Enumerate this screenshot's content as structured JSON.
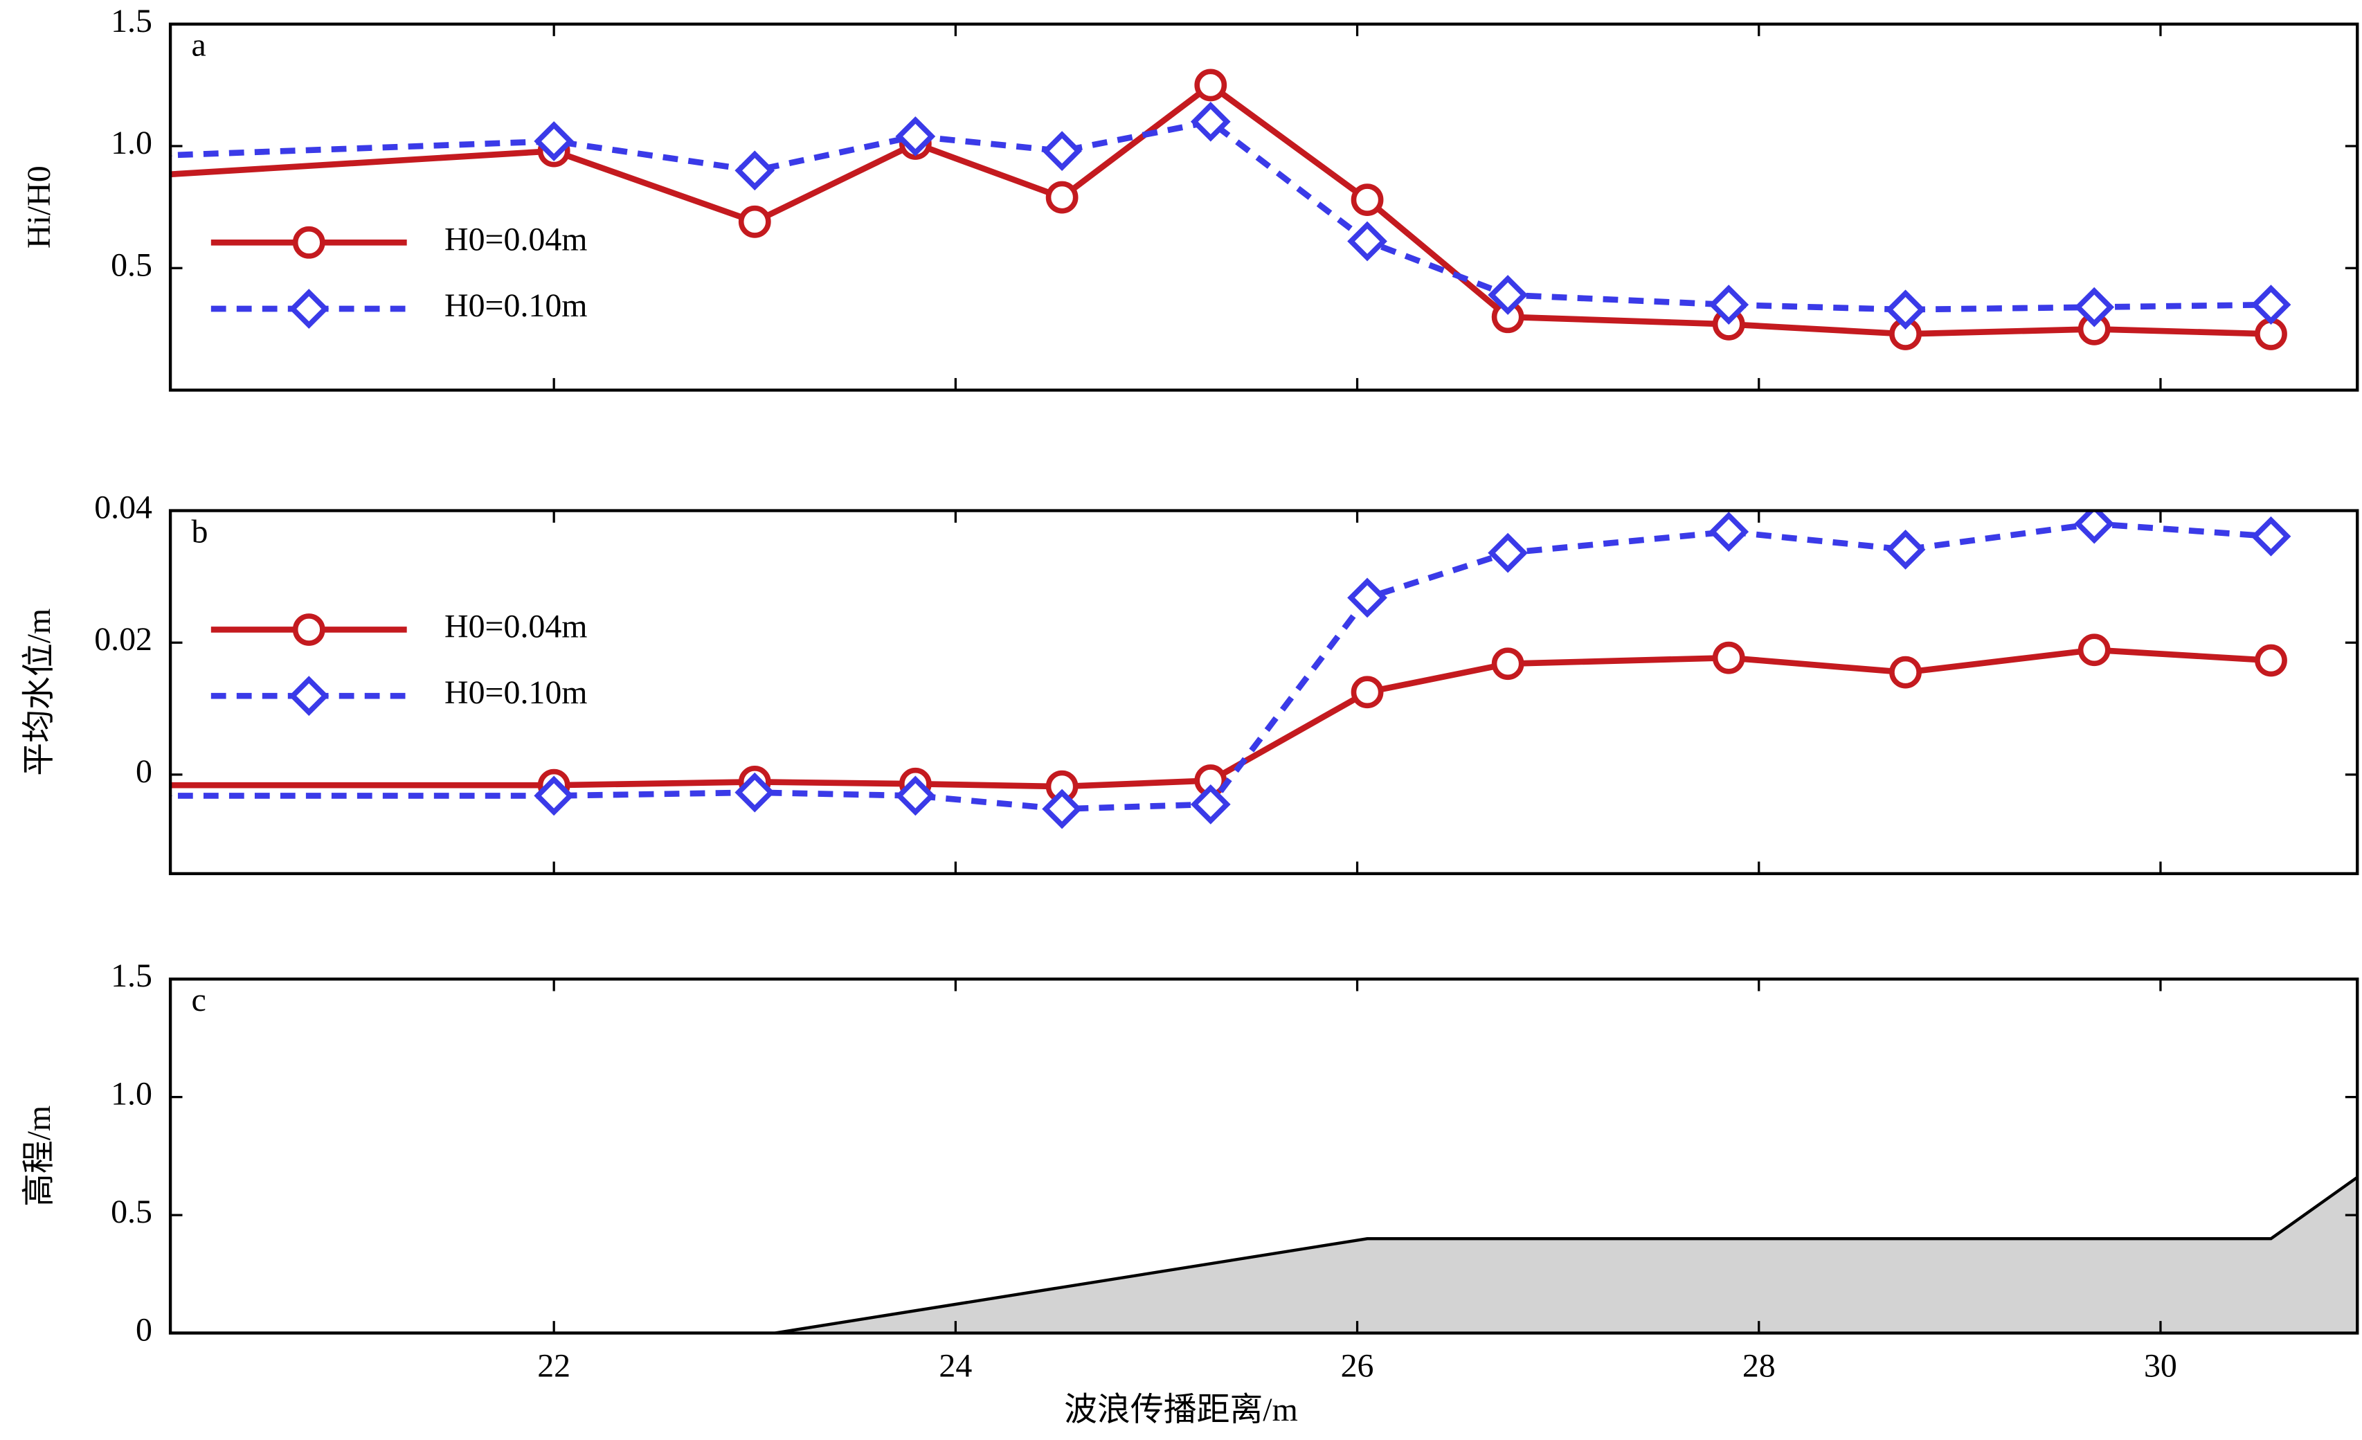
{
  "chart_data": [
    {
      "type": "line",
      "panel_label": "a",
      "ylabel": "Hi/H0",
      "legend": "upper left",
      "marker_size": 9,
      "x": [
        20,
        22,
        23,
        23.8,
        24.53,
        25.27,
        26.05,
        26.75,
        27.85,
        28.73,
        29.67,
        30.55
      ],
      "ylim": [
        0,
        1.5
      ],
      "yticks": [
        0.5,
        {
          "value": 1.0,
          "label": "1.0"
        },
        1.5
      ],
      "series": [
        {
          "name": "H0=0.04m",
          "color": "#c41a1f",
          "marker": "circle",
          "dashed": false,
          "values": [
            0.88,
            0.98,
            0.69,
            1.01,
            0.79,
            1.25,
            0.78,
            0.3,
            0.27,
            0.23,
            0.25,
            0.23
          ]
        },
        {
          "name": "H0=0.10m",
          "color": "#3a3ae8",
          "marker": "diamond",
          "dashed": true,
          "values": [
            0.96,
            1.02,
            0.9,
            1.04,
            0.98,
            1.1,
            0.61,
            0.39,
            0.35,
            0.33,
            0.34,
            0.35
          ]
        }
      ]
    },
    {
      "type": "line",
      "panel_label": "b",
      "ylabel": "平均水位/m",
      "legend": "upper left",
      "marker_size": 9,
      "x": [
        20,
        22,
        23,
        23.8,
        24.53,
        25.27,
        26.05,
        26.75,
        27.85,
        28.73,
        29.67,
        30.55
      ],
      "ylim": [
        -0.015,
        0.04
      ],
      "yticks": [
        0,
        0.02,
        0.04
      ],
      "series": [
        {
          "name": "H0=0.04m",
          "color": "#c41a1f",
          "marker": "circle",
          "dashed": false,
          "values": [
            -0.0016,
            -0.0016,
            -0.0011,
            -0.0014,
            -0.0018,
            -0.0009,
            0.0125,
            0.0168,
            0.0177,
            0.0155,
            0.0189,
            0.0173
          ]
        },
        {
          "name": "H0=0.10m",
          "color": "#3a3ae8",
          "marker": "diamond",
          "dashed": true,
          "values": [
            -0.0032,
            -0.0032,
            -0.0027,
            -0.0032,
            -0.0052,
            -0.0045,
            0.0268,
            0.0336,
            0.0368,
            0.0341,
            0.038,
            0.0361
          ]
        }
      ]
    },
    {
      "type": "area",
      "panel_label": "c",
      "ylabel": "高程/m",
      "xlabel": "波浪传播距离/m",
      "color": "#d3d3d3",
      "x": [
        20.09,
        23.1,
        26.05,
        30.55,
        30.98
      ],
      "values": [
        0,
        0,
        0.4,
        0.4,
        0.66
      ],
      "xlim": [
        20.09,
        30.98
      ],
      "xticks": [
        22,
        24,
        26,
        28,
        30
      ],
      "ylim": [
        0,
        1.5
      ],
      "yticks": [
        0,
        0.5,
        {
          "value": 1.0,
          "label": "1.0"
        },
        1.5
      ]
    }
  ]
}
